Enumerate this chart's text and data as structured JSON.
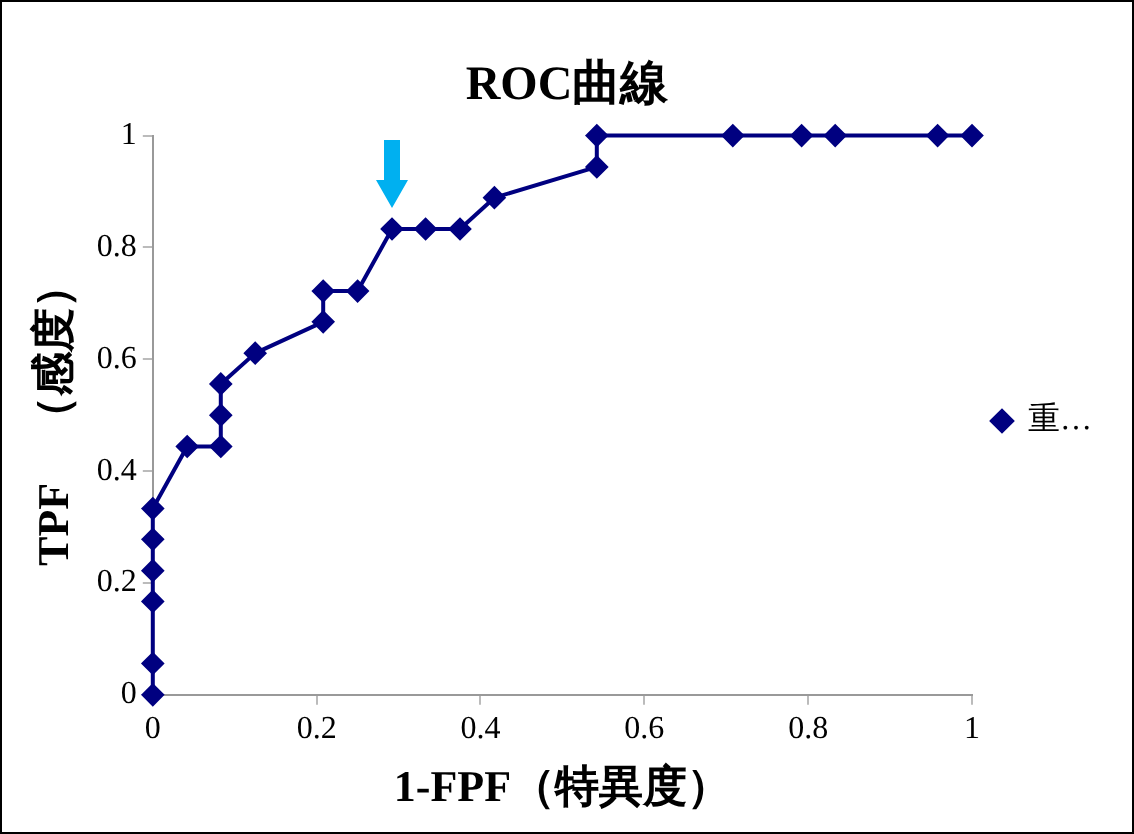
{
  "chart_data": {
    "type": "line",
    "title": "ROC曲線",
    "xlabel": "1-FPF（特異度）",
    "ylabel": "TPF　（感度）",
    "x": [
      0,
      0,
      0,
      0,
      0,
      0,
      0.042,
      0.083,
      0.083,
      0.083,
      0.125,
      0.208,
      0.208,
      0.25,
      0.292,
      0.333,
      0.375,
      0.417,
      0.542,
      0.542,
      0.708,
      0.792,
      0.833,
      0.958,
      1
    ],
    "series": [
      {
        "name": "重…",
        "color": "#000080",
        "values": [
          0,
          0.056,
          0.167,
          0.222,
          0.278,
          0.333,
          0.444,
          0.444,
          0.5,
          0.556,
          0.611,
          0.667,
          0.722,
          0.722,
          0.833,
          0.833,
          0.833,
          0.889,
          0.944,
          1,
          1,
          1,
          1,
          1,
          1
        ]
      }
    ],
    "xlim": [
      0,
      1
    ],
    "xticks": [
      0,
      0.2,
      0.4,
      0.6,
      0.8,
      1
    ],
    "ylim": [
      0,
      1
    ],
    "yticks": [
      0,
      0.2,
      0.4,
      0.6,
      0.8,
      1
    ],
    "grid": false,
    "legend": "right",
    "marker": "diamond",
    "line_style": "solid"
  }
}
